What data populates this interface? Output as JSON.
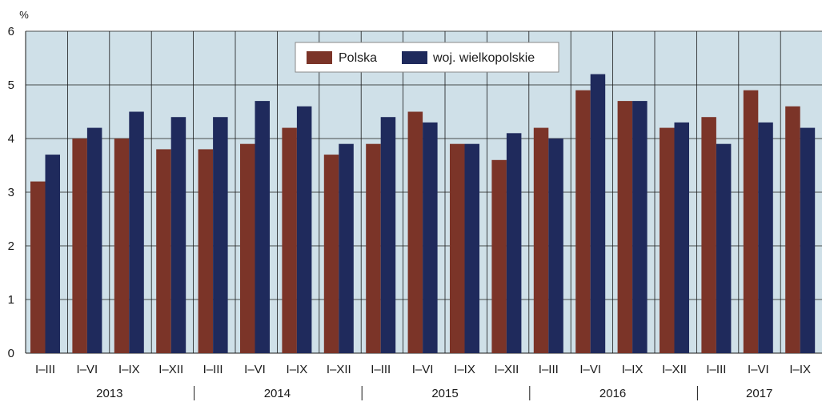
{
  "chart_data": {
    "type": "bar",
    "unit_label": "%",
    "ylim": [
      0,
      6
    ],
    "yticks": [
      0,
      1,
      2,
      3,
      4,
      5,
      6
    ],
    "grid": true,
    "legend_position": "top-center",
    "categories": [
      "I–III",
      "I–VI",
      "I–IX",
      "I–XII",
      "I–III",
      "I–VI",
      "I–IX",
      "I–XII",
      "I–III",
      "I–VI",
      "I–IX",
      "I–XII",
      "I–III",
      "I–VI",
      "I–IX",
      "I–XII",
      "I–III",
      "I–VI",
      "I–IX"
    ],
    "years": [
      {
        "label": "2013",
        "start": 0,
        "count": 4
      },
      {
        "label": "2014",
        "start": 4,
        "count": 4
      },
      {
        "label": "2015",
        "start": 8,
        "count": 4
      },
      {
        "label": "2016",
        "start": 12,
        "count": 4
      },
      {
        "label": "2017",
        "start": 16,
        "count": 3
      }
    ],
    "series": [
      {
        "name": "Polska",
        "color": "#7b3428",
        "values": [
          3.2,
          4.0,
          4.0,
          3.8,
          3.8,
          3.9,
          4.2,
          3.7,
          3.9,
          4.5,
          3.9,
          3.6,
          4.2,
          4.9,
          4.7,
          4.2,
          4.4,
          4.9,
          4.6
        ]
      },
      {
        "name": "woj. wielkopolskie",
        "color": "#1f2a5c",
        "values": [
          3.7,
          4.2,
          4.5,
          4.4,
          4.4,
          4.7,
          4.6,
          3.9,
          4.4,
          4.3,
          3.9,
          4.1,
          4.0,
          5.2,
          4.7,
          4.3,
          3.9,
          4.3,
          4.2
        ]
      }
    ],
    "plot_background": "#cfe0e8",
    "grid_color": "#1a1a1a"
  }
}
